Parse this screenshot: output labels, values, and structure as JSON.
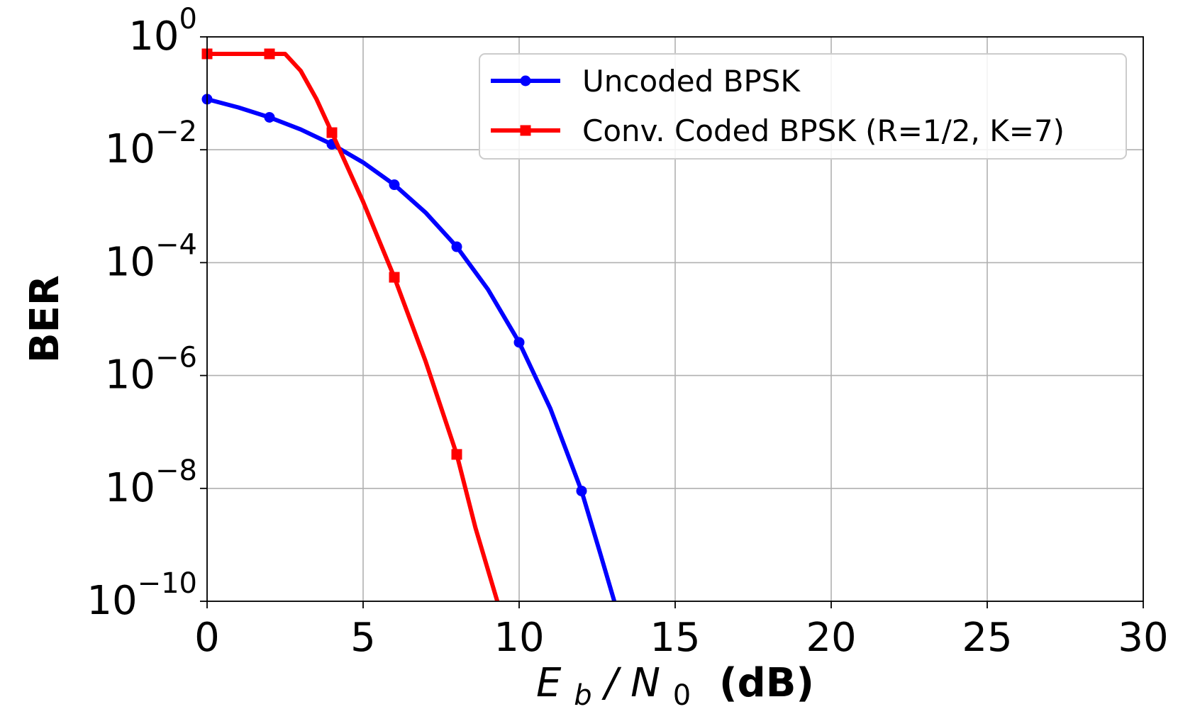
{
  "chart_data": {
    "type": "line",
    "xlabel": {
      "var_main": "E",
      "var_sub": "b",
      "sep": "/",
      "var2_main": "N",
      "var2_sub": "0",
      "unit": "(dB)"
    },
    "ylabel": "BER",
    "xlim": [
      0,
      30
    ],
    "ylim": [
      1e-10,
      1
    ],
    "yscale": "log",
    "grid": true,
    "legend_position": "top-right",
    "xticks": [
      {
        "value": 0,
        "label": "0"
      },
      {
        "value": 5,
        "label": "5"
      },
      {
        "value": 10,
        "label": "10"
      },
      {
        "value": 15,
        "label": "15"
      },
      {
        "value": 20,
        "label": "20"
      },
      {
        "value": 25,
        "label": "25"
      },
      {
        "value": 30,
        "label": "30"
      }
    ],
    "yticks": [
      {
        "value": 1,
        "base": "10",
        "exp": "0"
      },
      {
        "value": 0.01,
        "base": "10",
        "exp": "−2"
      },
      {
        "value": 0.0001,
        "base": "10",
        "exp": "−4"
      },
      {
        "value": 1e-06,
        "base": "10",
        "exp": "−6"
      },
      {
        "value": 1e-08,
        "base": "10",
        "exp": "−8"
      },
      {
        "value": 1e-10,
        "base": "10",
        "exp": "−10"
      }
    ],
    "series": [
      {
        "name": "Uncoded BPSK",
        "color": "#0000ff",
        "marker": "circle",
        "marker_points": [
          {
            "x": 0,
            "y": 0.0786
          },
          {
            "x": 2,
            "y": 0.0375
          },
          {
            "x": 4,
            "y": 0.0125
          },
          {
            "x": 6,
            "y": 0.0024
          },
          {
            "x": 8,
            "y": 0.000191
          },
          {
            "x": 10,
            "y": 3.87e-06
          },
          {
            "x": 12,
            "y": 9e-09
          }
        ],
        "curve": [
          {
            "x": 0,
            "y": 0.0786
          },
          {
            "x": 1,
            "y": 0.0563
          },
          {
            "x": 2,
            "y": 0.0375
          },
          {
            "x": 3,
            "y": 0.0229
          },
          {
            "x": 4,
            "y": 0.0125
          },
          {
            "x": 5,
            "y": 0.00595
          },
          {
            "x": 6,
            "y": 0.0024
          },
          {
            "x": 7,
            "y": 0.000773
          },
          {
            "x": 8,
            "y": 0.000191
          },
          {
            "x": 9,
            "y": 3.36e-05
          },
          {
            "x": 10,
            "y": 3.87e-06
          },
          {
            "x": 11,
            "y": 2.6e-07
          },
          {
            "x": 12,
            "y": 9e-09
          },
          {
            "x": 12.6,
            "y": 7e-10
          },
          {
            "x": 13.05,
            "y": 1e-10
          }
        ]
      },
      {
        "name": "Conv. Coded BPSK (R=1/2, K=7)",
        "color": "#ff0000",
        "marker": "square",
        "marker_points": [
          {
            "x": 0,
            "y": 0.5
          },
          {
            "x": 2,
            "y": 0.5
          },
          {
            "x": 4,
            "y": 0.0201
          },
          {
            "x": 6,
            "y": 5.5e-05
          },
          {
            "x": 8,
            "y": 4e-08
          }
        ],
        "curve": [
          {
            "x": 0,
            "y": 0.5
          },
          {
            "x": 2,
            "y": 0.5
          },
          {
            "x": 2.5,
            "y": 0.5
          },
          {
            "x": 3,
            "y": 0.25
          },
          {
            "x": 3.5,
            "y": 0.08
          },
          {
            "x": 4,
            "y": 0.0201
          },
          {
            "x": 5,
            "y": 0.0012
          },
          {
            "x": 6,
            "y": 5.5e-05
          },
          {
            "x": 7,
            "y": 1.8e-06
          },
          {
            "x": 8,
            "y": 4e-08
          },
          {
            "x": 8.6,
            "y": 2e-09
          },
          {
            "x": 9.3,
            "y": 1e-10
          }
        ]
      }
    ]
  }
}
